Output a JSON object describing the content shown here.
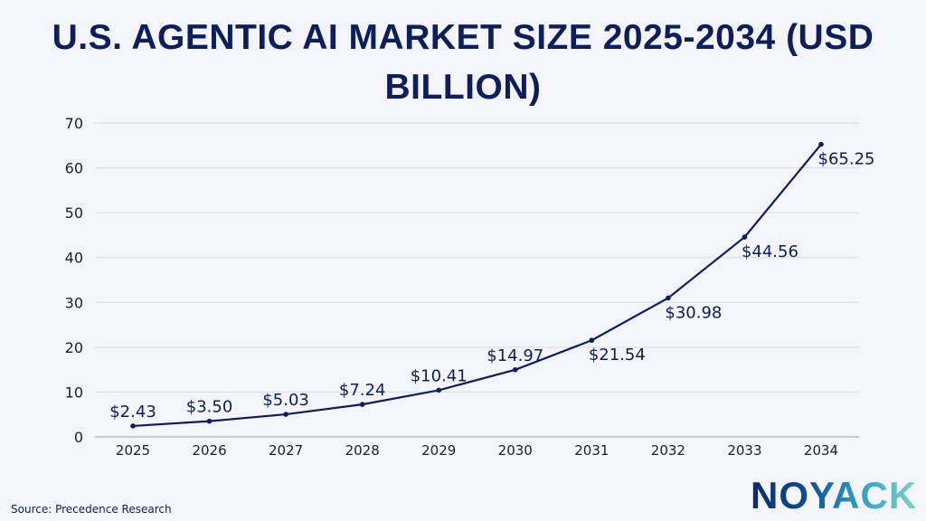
{
  "chart_data": {
    "type": "line",
    "title": "U.S. AGENTIC AI MARKET SIZE 2025-2034 (USD BILLION)",
    "categories": [
      "2025",
      "2026",
      "2027",
      "2028",
      "2029",
      "2030",
      "2031",
      "2032",
      "2033",
      "2034"
    ],
    "values": [
      2.43,
      3.5,
      5.03,
      7.24,
      10.41,
      14.97,
      21.54,
      30.98,
      44.56,
      65.25
    ],
    "data_labels": [
      "$2.43",
      "$3.50",
      "$5.03",
      "$7.24",
      "$10.41",
      "$14.97",
      "$21.54",
      "$30.98",
      "$44.56",
      "$65.25"
    ],
    "ylim": [
      0,
      70
    ],
    "yticks": [
      0,
      10,
      20,
      30,
      40,
      50,
      60,
      70
    ],
    "grid": true,
    "xlabel": "",
    "ylabel": "",
    "line_color": "#0c1f5c"
  },
  "source": "Source: Precedence Research",
  "logo_text": "NOYACK"
}
